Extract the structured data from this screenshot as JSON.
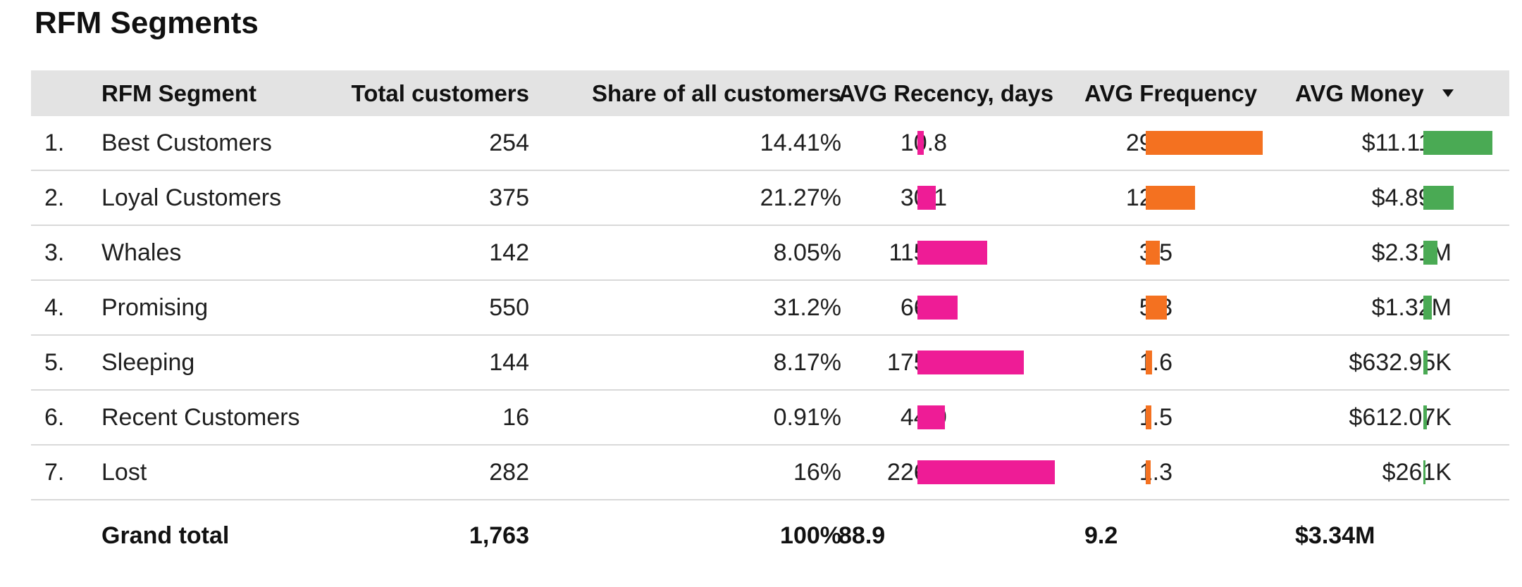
{
  "title": "RFM Segments",
  "columns": {
    "segment": "RFM Segment",
    "total": "Total customers",
    "share": "Share of all customers",
    "recency": "AVG Recency, days",
    "frequency": "AVG Frequency",
    "money": "AVG Money"
  },
  "sort_icon": "sort-descending-icon",
  "rows": [
    {
      "idx": "1.",
      "segment": "Best Customers",
      "total": "254",
      "share": "14.41%",
      "recency": "10.8",
      "frequency": "29.4",
      "money": "$11.11M"
    },
    {
      "idx": "2.",
      "segment": "Loyal Customers",
      "total": "375",
      "share": "21.27%",
      "recency": "30.1",
      "frequency": "12.4",
      "money": "$4.89M"
    },
    {
      "idx": "3.",
      "segment": "Whales",
      "total": "142",
      "share": "8.05%",
      "recency": "115.4",
      "frequency": "3.5",
      "money": "$2.31M"
    },
    {
      "idx": "4.",
      "segment": "Promising",
      "total": "550",
      "share": "31.2%",
      "recency": "66.1",
      "frequency": "5.3",
      "money": "$1.32M"
    },
    {
      "idx": "5.",
      "segment": "Sleeping",
      "total": "144",
      "share": "8.17%",
      "recency": "175.5",
      "frequency": "1.6",
      "money": "$632.95K"
    },
    {
      "idx": "6.",
      "segment": "Recent Customers",
      "total": "16",
      "share": "0.91%",
      "recency": "44.9",
      "frequency": "1.5",
      "money": "$612.07K"
    },
    {
      "idx": "7.",
      "segment": "Lost",
      "total": "282",
      "share": "16%",
      "recency": "226.8",
      "frequency": "1.3",
      "money": "$261K"
    }
  ],
  "grand_total": {
    "label": "Grand total",
    "total": "1,763",
    "share": "100%",
    "recency": "88.9",
    "frequency": "9.2",
    "money": "$3.34M"
  },
  "colors": {
    "recency_bar": "#ee1c96",
    "frequency_bar": "#f47120",
    "money_bar": "#4aaa54",
    "header_bg": "#e3e3e3"
  },
  "chart_data": {
    "type": "table",
    "title": "RFM Segments",
    "columns": [
      "RFM Segment",
      "Total customers",
      "Share of all customers",
      "AVG Recency, days",
      "AVG Frequency",
      "AVG Money"
    ],
    "bar_columns": [
      "AVG Recency, days",
      "AVG Frequency",
      "AVG Money"
    ],
    "sort": {
      "column": "AVG Money",
      "order": "descending"
    },
    "recency_values": [
      10.8,
      30.1,
      115.4,
      66.1,
      175.5,
      44.9,
      226.8
    ],
    "frequency_values": [
      29.4,
      12.4,
      3.5,
      5.3,
      1.6,
      1.5,
      1.3
    ],
    "money_values": [
      11110000,
      4890000,
      2310000,
      1320000,
      632950,
      612070,
      261000
    ]
  }
}
